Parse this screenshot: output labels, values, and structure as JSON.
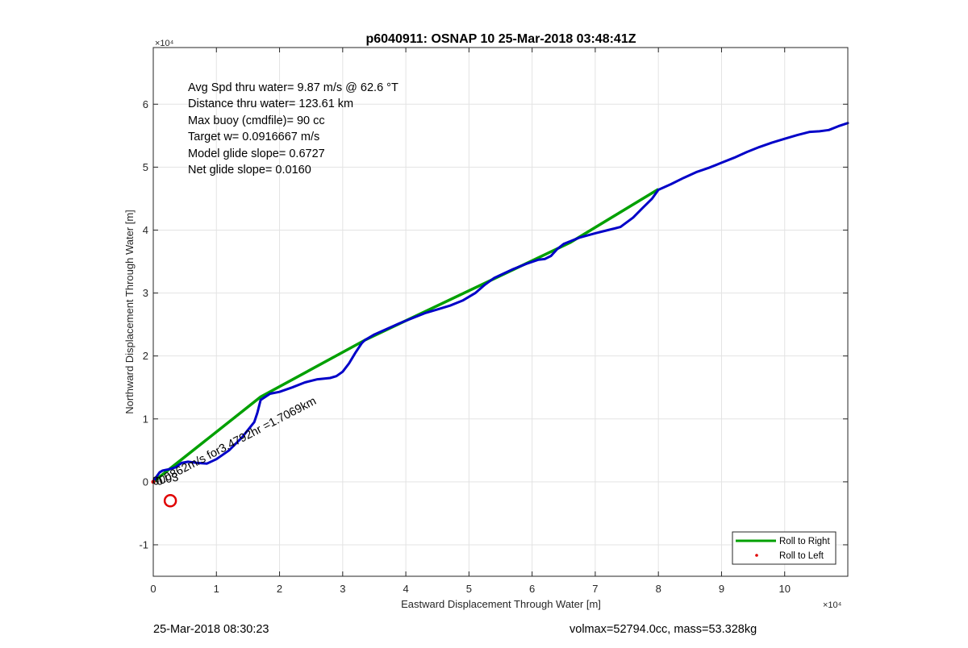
{
  "footer": {
    "left": "25-Mar-2018 08:30:23",
    "right": "volmax=52794.0cc, mass=53.328kg"
  },
  "chart_data": {
    "type": "line",
    "title": "p6040911: OSNAP 10 25-Mar-2018 03:48:41Z",
    "xlabel": "Eastward Displacement Through Water [m]",
    "ylabel": "Northward Displacement Through Water [m]",
    "x_exponent_label": "×10⁴",
    "y_exponent_label": "×10⁴",
    "xlim": [
      0,
      110000
    ],
    "ylim": [
      -15000,
      69000
    ],
    "x_ticks": [
      0,
      10000,
      20000,
      30000,
      40000,
      50000,
      60000,
      70000,
      80000,
      90000,
      100000
    ],
    "x_tick_labels": [
      "0",
      "1",
      "2",
      "3",
      "4",
      "5",
      "6",
      "7",
      "8",
      "9",
      "10"
    ],
    "y_ticks": [
      -10000,
      0,
      10000,
      20000,
      30000,
      40000,
      50000,
      60000
    ],
    "y_tick_labels": [
      "-1",
      "0",
      "1",
      "2",
      "3",
      "4",
      "5",
      "6"
    ],
    "grid": true,
    "legend_position": "bottom-right",
    "annotations": [
      "Avg Spd thru water=  9.87 m/s @  62.6 °T",
      "Distance thru water= 123.61 km",
      "Max buoy (cmdfile)= 90 cc",
      "Target w= 0.0916667 m/s",
      "Model glide slope= 0.6727",
      "Net glide slope= 0.0160"
    ],
    "rotated_annotation": "0.0862m/s for3.4792hr =1.7069km",
    "start_label": "0003",
    "colors": {
      "roll_right": "#00a000",
      "track": "#0000c8",
      "roll_left": "#e00000"
    },
    "series": [
      {
        "name": "Roll to Right",
        "style": "line",
        "x": [
          0,
          17000,
          33500,
          66000,
          80000
        ],
        "y": [
          0,
          13500,
          22500,
          38000,
          46500
        ]
      },
      {
        "name": "Roll to Left",
        "style": "dot",
        "x": [],
        "y": []
      }
    ],
    "track": {
      "x": [
        0,
        500,
        1000,
        1500,
        2500,
        3500,
        4500,
        5500,
        7000,
        8500,
        10000,
        12000,
        14000,
        16000,
        16500,
        17000,
        18500,
        20000,
        22000,
        24000,
        26000,
        28000,
        29000,
        30000,
        31000,
        32000,
        33000,
        33500,
        35000,
        37000,
        39000,
        41000,
        43000,
        45000,
        47000,
        49000,
        51000,
        52500,
        54000,
        55500,
        57000,
        59000,
        61000,
        62000,
        63000,
        64000,
        65000,
        66000,
        67500,
        70000,
        72000,
        74000,
        76000,
        77500,
        79000,
        80000,
        82000,
        84000,
        86000,
        88000,
        90000,
        92000,
        94000,
        96000,
        98000,
        100000,
        102000,
        104000,
        105500,
        107000,
        108500,
        110000
      ],
      "y": [
        0,
        800,
        1500,
        1800,
        2000,
        2300,
        3000,
        3200,
        3000,
        2900,
        3600,
        5000,
        7000,
        9500,
        11000,
        13000,
        14000,
        14300,
        15000,
        15800,
        16300,
        16500,
        16800,
        17500,
        18800,
        20500,
        22000,
        22500,
        23400,
        24300,
        25200,
        26000,
        26800,
        27400,
        28000,
        28800,
        30000,
        31300,
        32400,
        33100,
        33800,
        34600,
        35300,
        35400,
        35900,
        37000,
        37800,
        38200,
        38800,
        39500,
        40000,
        40500,
        42000,
        43500,
        45000,
        46400,
        47300,
        48300,
        49200,
        49900,
        50700,
        51500,
        52400,
        53200,
        53900,
        54500,
        55100,
        55600,
        55700,
        55900,
        56500,
        57000
      ],
      "end_circle": {
        "x": 2700,
        "y": -3000
      }
    }
  }
}
